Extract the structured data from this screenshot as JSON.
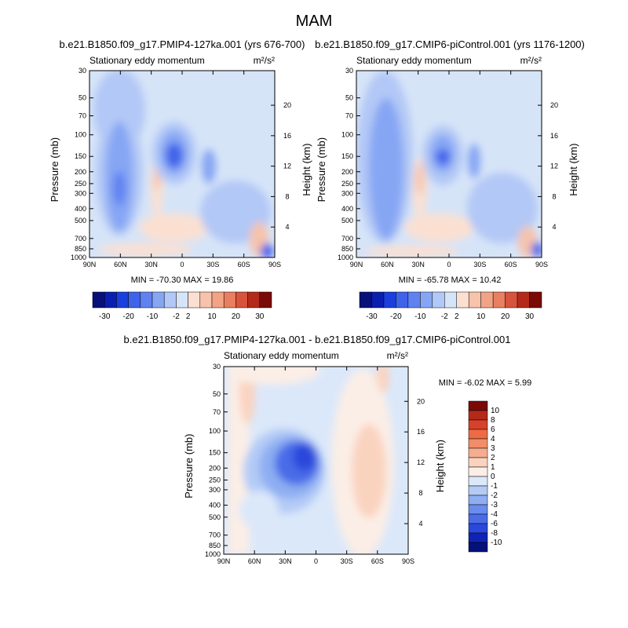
{
  "page_title": "MAM",
  "colorbar_top": {
    "labels": [
      "-30",
      "-20",
      "-10",
      "-2",
      "2",
      "10",
      "20",
      "30"
    ],
    "colors": [
      "#08107a",
      "#0a1fb0",
      "#1a3fdc",
      "#3f63ea",
      "#5f82f0",
      "#86a6f4",
      "#b2c8f6",
      "#d6e4f8",
      "#fbe0d2",
      "#f7c3aa",
      "#f2a386",
      "#e97f60",
      "#d8533b",
      "#b42a1a",
      "#7a0a06"
    ]
  },
  "colorbar_bottom": {
    "labels": [
      "10",
      "8",
      "6",
      "4",
      "3",
      "2",
      "1",
      "0",
      "-1",
      "-2",
      "-3",
      "-4",
      "-6",
      "-8",
      "-10"
    ],
    "colors": [
      "#7a0a06",
      "#b42a1a",
      "#d8402a",
      "#ee6a45",
      "#f38c68",
      "#f6ad8f",
      "#fad3bf",
      "#fbeee6",
      "#dbe8fa",
      "#b4cbf6",
      "#8eaef2",
      "#6a8cee",
      "#4a6ce8",
      "#2a48dc",
      "#0f24b4",
      "#06107a"
    ]
  },
  "chart_data": [
    {
      "type": "heatmap",
      "panel": "left",
      "title": "b.e21.B1850.f09_g17.PMIP4-127ka.001 (yrs 676-700)",
      "subtitle_left": "Stationary eddy momentum",
      "units": "m²/s²",
      "xlabel": "",
      "ylabel": "Pressure (mb)",
      "ylabel_right": "Height (km)",
      "x_ticks": [
        "90N",
        "60N",
        "30N",
        "0",
        "30S",
        "60S",
        "90S"
      ],
      "y_ticks": [
        "30",
        "50",
        "70",
        "100",
        "150",
        "200",
        "250",
        "300",
        "400",
        "500",
        "700",
        "850",
        "1000"
      ],
      "y2_ticks": [
        "20",
        "16",
        "12",
        "8",
        "4"
      ],
      "stats": "MIN = -70.30  MAX = 19.86"
    },
    {
      "type": "heatmap",
      "panel": "right",
      "title": "b.e21.B1850.f09_g17.CMIP6-piControl.001 (yrs 1176-1200)",
      "subtitle_left": "Stationary eddy momentum",
      "units": "m²/s²",
      "xlabel": "",
      "ylabel": "Pressure (mb)",
      "ylabel_right": "Height (km)",
      "x_ticks": [
        "90N",
        "60N",
        "30N",
        "0",
        "30S",
        "60S",
        "90S"
      ],
      "y_ticks": [
        "30",
        "50",
        "70",
        "100",
        "150",
        "200",
        "250",
        "300",
        "400",
        "500",
        "700",
        "850",
        "1000"
      ],
      "y2_ticks": [
        "20",
        "16",
        "12",
        "8",
        "4"
      ],
      "stats": "MIN = -65.78  MAX = 10.42"
    },
    {
      "type": "heatmap",
      "panel": "bottom",
      "title": "b.e21.B1850.f09_g17.PMIP4-127ka.001 - b.e21.B1850.f09_g17.CMIP6-piControl.001",
      "subtitle_left": "Stationary eddy momentum",
      "units": "m²/s²",
      "xlabel": "",
      "ylabel": "Pressure (mb)",
      "ylabel_right": "Height (km)",
      "x_ticks": [
        "90N",
        "60N",
        "30N",
        "0",
        "30S",
        "60S",
        "90S"
      ],
      "y_ticks": [
        "30",
        "50",
        "70",
        "100",
        "150",
        "200",
        "250",
        "300",
        "400",
        "500",
        "700",
        "850",
        "1000"
      ],
      "y2_ticks": [
        "20",
        "16",
        "12",
        "8",
        "4"
      ],
      "stats": "MIN = -6.02  MAX =  5.99"
    }
  ]
}
